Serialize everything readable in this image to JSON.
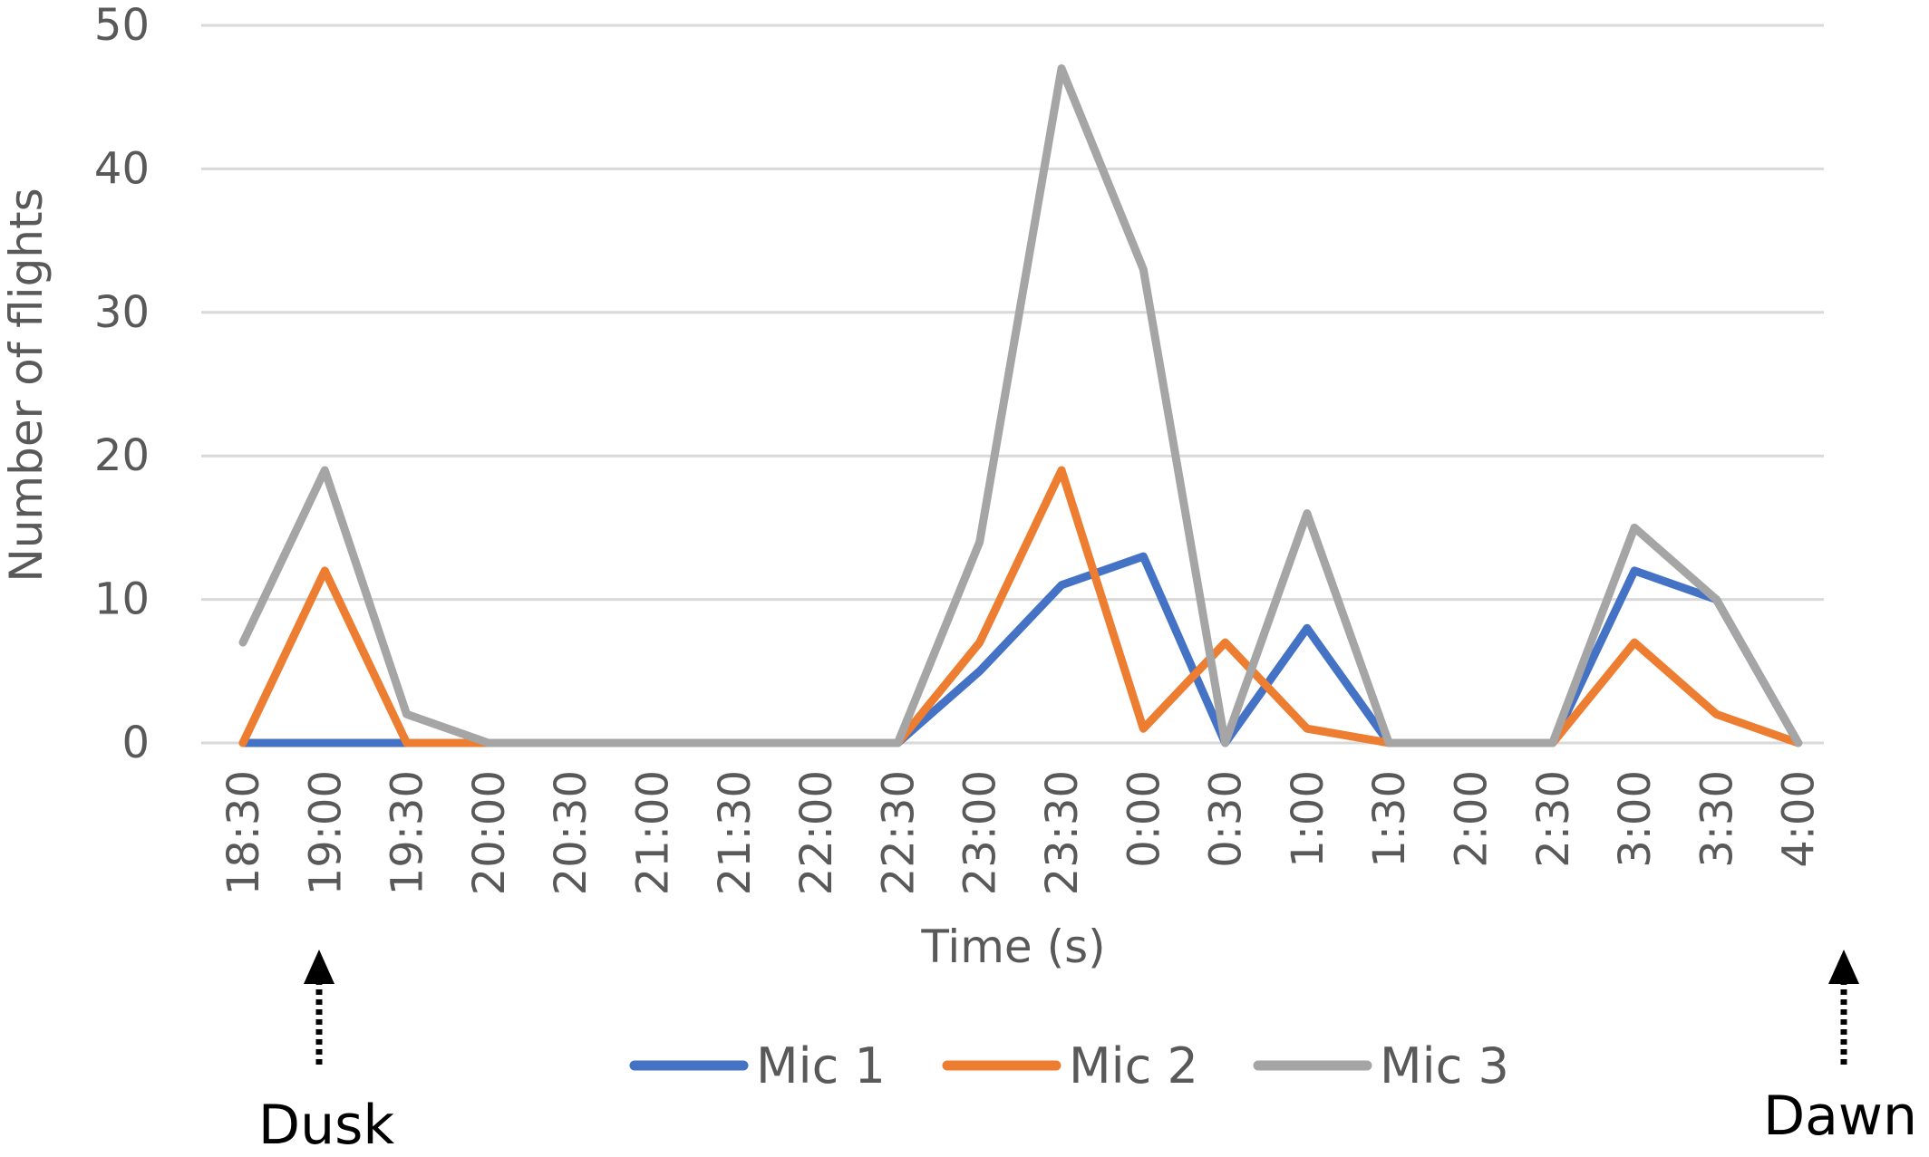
{
  "chart_data": {
    "type": "line",
    "title": "",
    "xlabel": "Time (s)",
    "ylabel": "Number of flights",
    "ylim": [
      0,
      50
    ],
    "yticks": [
      "0",
      "10",
      "20",
      "30",
      "40",
      "50"
    ],
    "grid": true,
    "legend_position": "bottom",
    "categories": [
      "18:30",
      "19:00",
      "19:30",
      "20:00",
      "20:30",
      "21:00",
      "21:30",
      "22:00",
      "22:30",
      "23:00",
      "23:30",
      "0:00",
      "0:30",
      "1:00",
      "1:30",
      "2:00",
      "2:30",
      "3:00",
      "3:30",
      "4:00"
    ],
    "series": [
      {
        "name": "Mic 1",
        "color": "#4472c4",
        "values": [
          0,
          0,
          0,
          0,
          0,
          0,
          0,
          0,
          0,
          5,
          11,
          13,
          0,
          8,
          0,
          0,
          0,
          12,
          10,
          0
        ]
      },
      {
        "name": "Mic 2",
        "color": "#ed7d31",
        "values": [
          0,
          12,
          0,
          0,
          0,
          0,
          0,
          0,
          0,
          7,
          19,
          1,
          7,
          1,
          0,
          0,
          0,
          7,
          2,
          0
        ]
      },
      {
        "name": "Mic 3",
        "color": "#a5a5a5",
        "values": [
          7,
          19,
          2,
          0,
          0,
          0,
          0,
          0,
          0,
          14,
          47,
          33,
          0,
          16,
          0,
          0,
          0,
          15,
          10,
          0
        ]
      }
    ],
    "annotations": [
      {
        "label": "Dusk",
        "category": "19:00",
        "icon": "dotted-up-arrow-icon"
      },
      {
        "label": "Dawn",
        "category": "4:00",
        "icon": "dotted-up-arrow-icon"
      }
    ]
  }
}
